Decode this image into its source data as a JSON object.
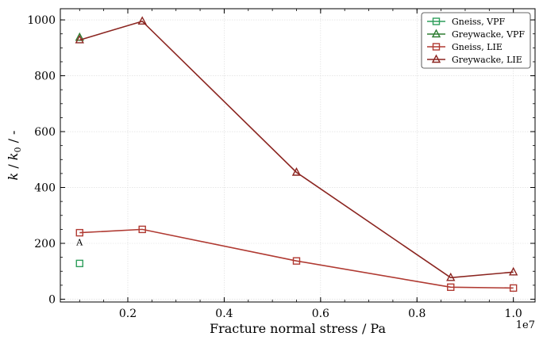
{
  "chart_data": {
    "type": "line",
    "xlabel": "Fracture normal stress / Pa",
    "ylabel": "k / k0 / -",
    "ylabel_main": "k",
    "ylabel_sub": "0",
    "ylabel_tail": " / -",
    "ylabel_sep": " / ",
    "x_offset_label": "1e7",
    "x_scale": 10000000,
    "xlim": [
      600000,
      10450000
    ],
    "ylim": [
      -10,
      1040
    ],
    "x_ticks": [
      2000000,
      4000000,
      6000000,
      8000000,
      10000000
    ],
    "x_tick_labels": [
      "0.2",
      "0.4",
      "0.6",
      "0.8",
      "1.0"
    ],
    "y_ticks": [
      0,
      200,
      400,
      600,
      800,
      1000
    ],
    "y_tick_labels": [
      "0",
      "200",
      "400",
      "600",
      "800",
      "1000"
    ],
    "grid": true,
    "legend_position": "top-right",
    "series": [
      {
        "name": "Gneiss, VPF",
        "marker": "square",
        "color": "#2e9e5b",
        "x": [
          1000000
        ],
        "y": [
          128
        ]
      },
      {
        "name": "Greywacke, VPF",
        "marker": "triangle",
        "color": "#2e7d32",
        "x": [
          1000000
        ],
        "y": [
          937
        ]
      },
      {
        "name": "Gneiss, LIE",
        "marker": "square",
        "color": "#b03a32",
        "x": [
          1000000,
          2300000,
          5500000,
          8700000,
          10000000
        ],
        "y": [
          238,
          250,
          137,
          43,
          40
        ]
      },
      {
        "name": "Greywacke, LIE",
        "marker": "triangle",
        "color": "#8b2520",
        "x": [
          1000000,
          2300000,
          5500000,
          8700000,
          10000000
        ],
        "y": [
          928,
          995,
          454,
          77,
          97
        ]
      }
    ],
    "annotations": [
      {
        "text": "A",
        "x": 1000000,
        "y": 170
      }
    ]
  }
}
